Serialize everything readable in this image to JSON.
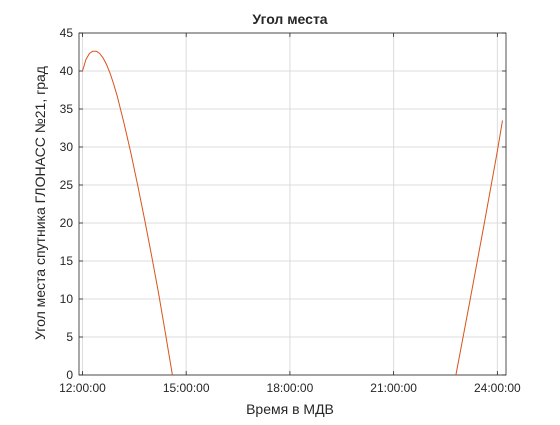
{
  "chart_data": {
    "type": "line",
    "title": "Угол места",
    "xlabel": "Время в МДВ",
    "ylabel": "Угол места спутника ГЛОНАСС №21, град",
    "x_ticks": [
      "12:00:00",
      "15:00:00",
      "18:00:00",
      "21:00:00",
      "24:00:00"
    ],
    "x_tick_hours": [
      12,
      15,
      18,
      21,
      24
    ],
    "y_ticks": [
      "0",
      "5",
      "10",
      "15",
      "20",
      "25",
      "30",
      "35",
      "40",
      "45"
    ],
    "xlim_hours": [
      11.9,
      24.25
    ],
    "ylim": [
      0,
      45
    ],
    "grid": true,
    "line_color": "#d95319",
    "series": [
      {
        "segments": [
          [
            [
              12.0,
              40.0
            ],
            [
              12.1,
              41.5
            ],
            [
              12.2,
              42.3
            ],
            [
              12.3,
              42.6
            ],
            [
              12.4,
              42.6
            ],
            [
              12.5,
              42.3
            ],
            [
              12.6,
              41.7
            ],
            [
              12.7,
              40.8
            ],
            [
              12.8,
              39.7
            ],
            [
              12.9,
              38.3
            ],
            [
              13.0,
              36.8
            ],
            [
              13.2,
              33.2
            ],
            [
              13.4,
              29.2
            ],
            [
              13.6,
              24.9
            ],
            [
              13.8,
              20.4
            ],
            [
              14.0,
              15.7
            ],
            [
              14.2,
              10.8
            ],
            [
              14.4,
              5.5
            ],
            [
              14.6,
              0.0
            ]
          ],
          [
            [
              22.8,
              0.0
            ],
            [
              23.0,
              4.8
            ],
            [
              23.2,
              9.6
            ],
            [
              23.4,
              14.5
            ],
            [
              23.6,
              19.4
            ],
            [
              23.8,
              24.4
            ],
            [
              24.0,
              29.5
            ],
            [
              24.15,
              33.5
            ]
          ]
        ]
      }
    ]
  }
}
